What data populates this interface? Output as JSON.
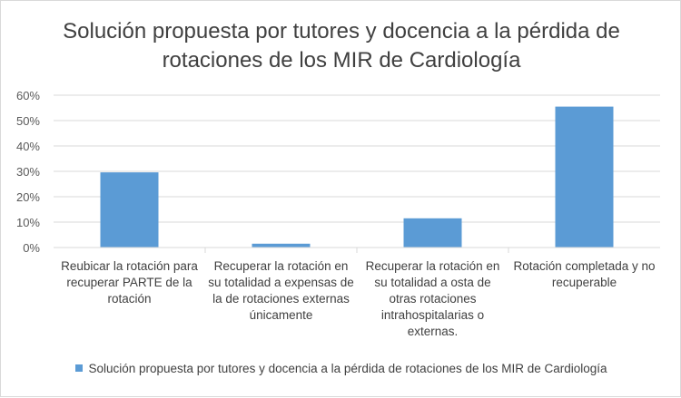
{
  "chart_data": {
    "type": "bar",
    "title": "Solución propuesta por tutores y docencia a la pérdida de rotaciones de los MIR de Cardiología",
    "categories": [
      "Reubicar la rotación para recuperar PARTE de la rotación",
      "Recuperar la rotación en su totalidad a expensas de la  de rotaciones externas únicamente",
      "Recuperar la rotación en su totalidad a osta de otras rotaciones intrahospitalarias o externas.",
      "Rotación completada y no recuperable"
    ],
    "series": [
      {
        "name": "Solución propuesta por tutores y docencia a la pérdida de rotaciones de los MIR de Cardiología",
        "values": [
          29.6,
          1.5,
          11.5,
          55.5
        ],
        "color": "#5b9bd5"
      }
    ],
    "yticks": [
      "0%",
      "10%",
      "20%",
      "30%",
      "40%",
      "50%",
      "60%"
    ],
    "ylim": [
      0,
      60
    ],
    "grid": "horizontal",
    "legend": "bottom",
    "xlabel": "",
    "ylabel": ""
  }
}
